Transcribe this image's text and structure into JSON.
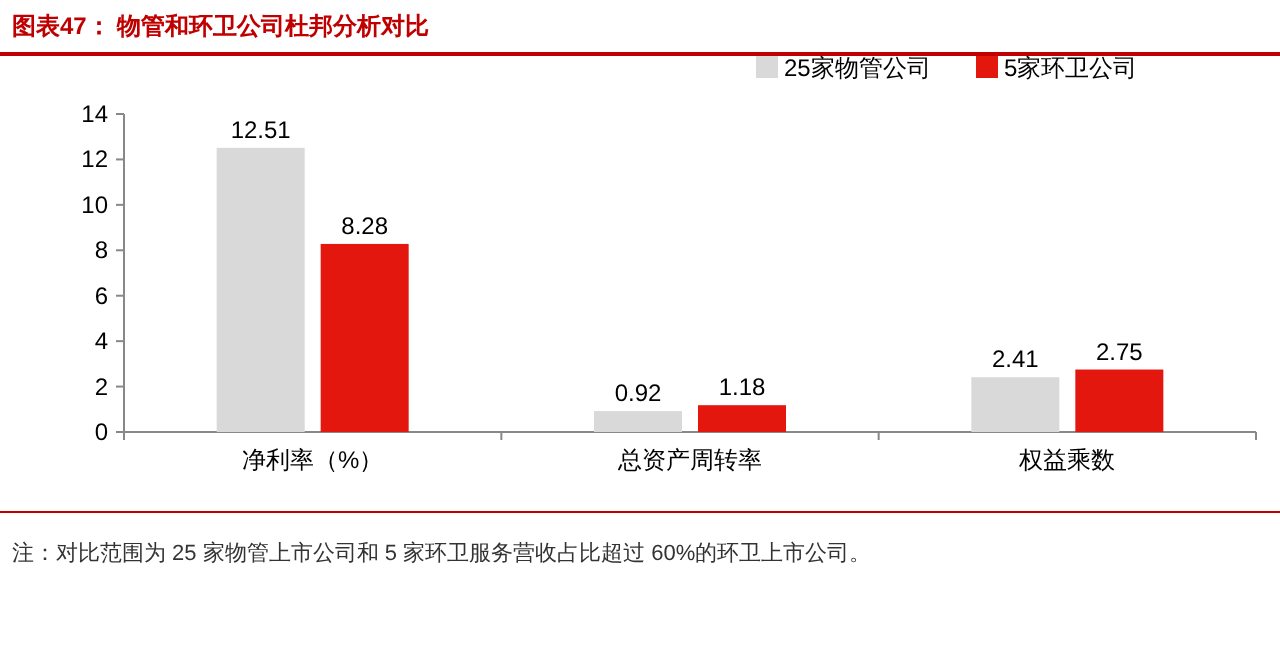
{
  "chart_data": {
    "type": "bar",
    "title": "图表47：  物管和环卫公司杜邦分析对比",
    "categories": [
      "净利率（%）",
      "总资产周转率",
      "权益乘数"
    ],
    "series": [
      {
        "name": "25家物管公司",
        "color": "#d9d9d9",
        "values": [
          12.51,
          0.92,
          2.41
        ]
      },
      {
        "name": "5家环卫公司",
        "color": "#e3170d",
        "values": [
          8.28,
          1.18,
          2.75
        ]
      }
    ],
    "ylim": [
      0,
      14
    ],
    "yticks": [
      0,
      2,
      4,
      6,
      8,
      10,
      12,
      14
    ],
    "data_labels": true,
    "legend": "top right",
    "grid": false,
    "annotations": [
      "注：对比范围为 25 家物管上市公司和 5 家环卫服务营收占比超过 60%的环卫上市公司。"
    ]
  }
}
